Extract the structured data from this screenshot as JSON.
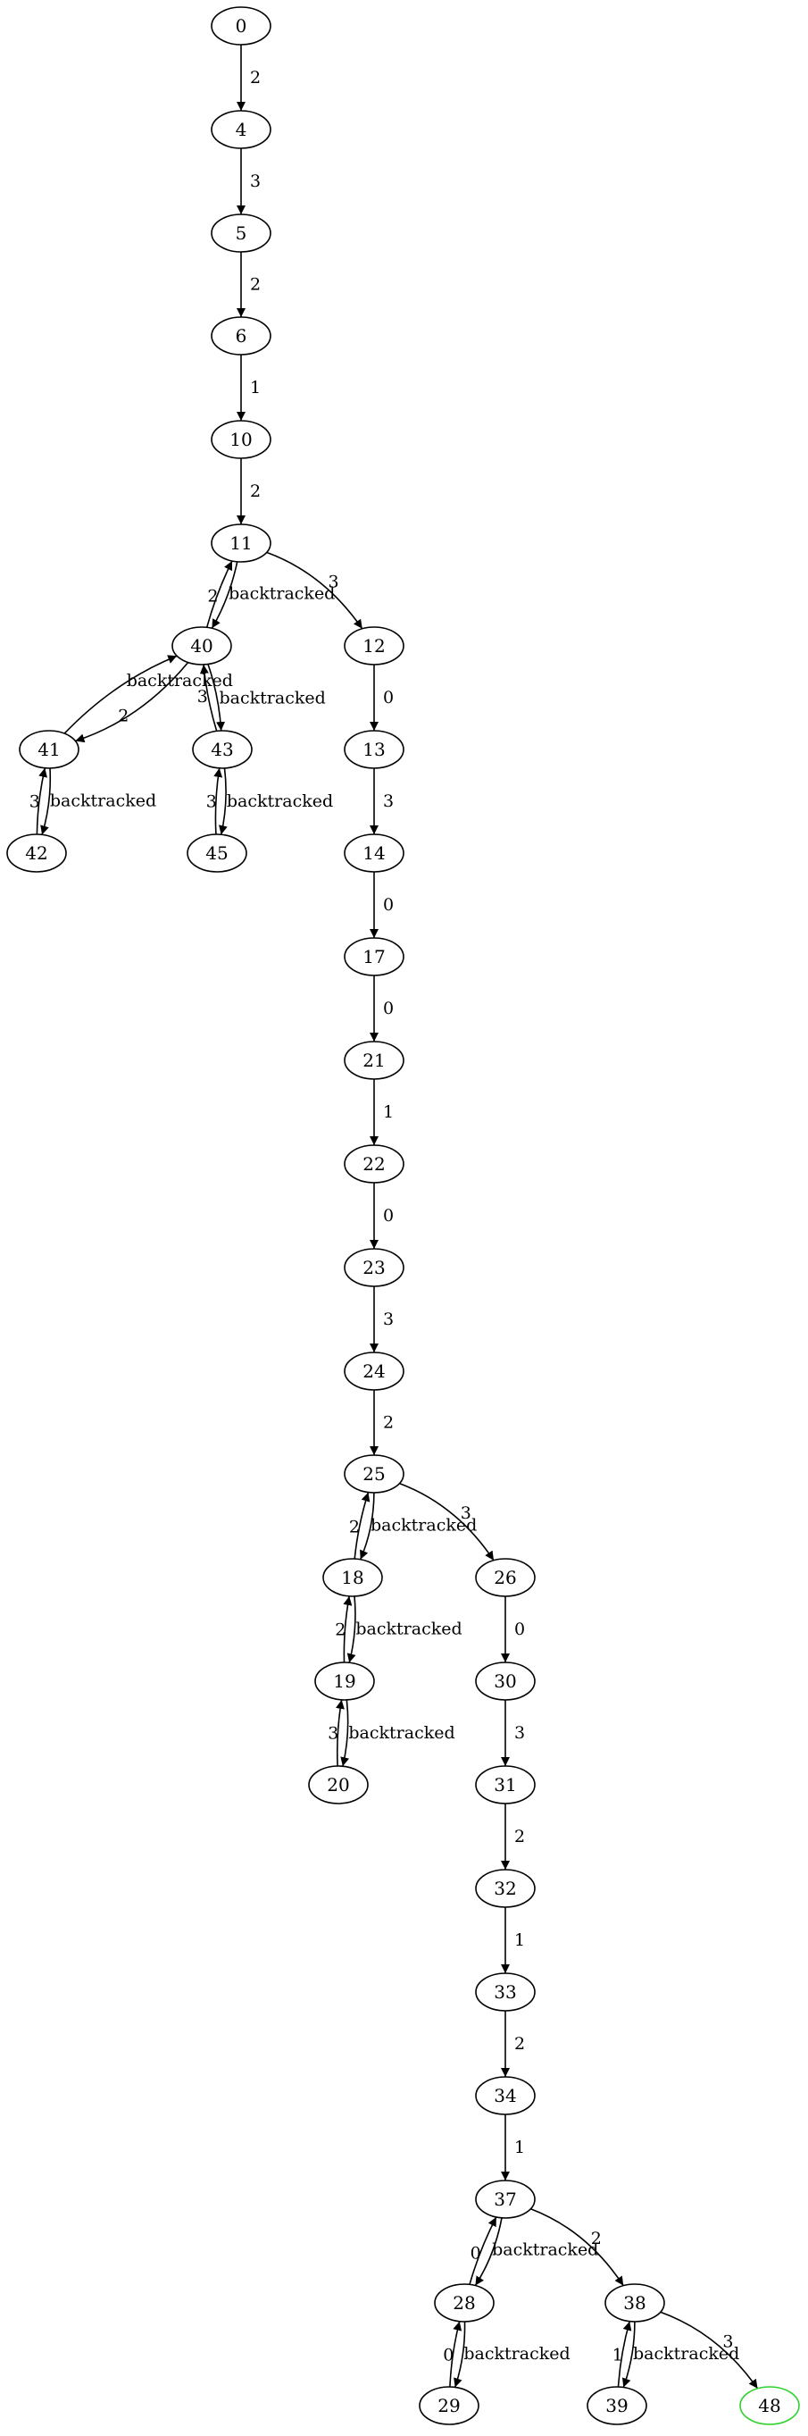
{
  "diagram": {
    "type": "directed-graph",
    "colors": {
      "node_stroke": "#000000",
      "goal_stroke": "#2ed12e",
      "edge": "#000000",
      "background": "#ffffff"
    },
    "nodes": [
      {
        "id": "0",
        "label": "0"
      },
      {
        "id": "4",
        "label": "4"
      },
      {
        "id": "5",
        "label": "5"
      },
      {
        "id": "6",
        "label": "6"
      },
      {
        "id": "10",
        "label": "10"
      },
      {
        "id": "11",
        "label": "11"
      },
      {
        "id": "40",
        "label": "40"
      },
      {
        "id": "12",
        "label": "12"
      },
      {
        "id": "41",
        "label": "41"
      },
      {
        "id": "43",
        "label": "43"
      },
      {
        "id": "13",
        "label": "13"
      },
      {
        "id": "42",
        "label": "42"
      },
      {
        "id": "45",
        "label": "45"
      },
      {
        "id": "14",
        "label": "14"
      },
      {
        "id": "17",
        "label": "17"
      },
      {
        "id": "21",
        "label": "21"
      },
      {
        "id": "22",
        "label": "22"
      },
      {
        "id": "23",
        "label": "23"
      },
      {
        "id": "24",
        "label": "24"
      },
      {
        "id": "25",
        "label": "25"
      },
      {
        "id": "18",
        "label": "18"
      },
      {
        "id": "26",
        "label": "26"
      },
      {
        "id": "19",
        "label": "19"
      },
      {
        "id": "30",
        "label": "30"
      },
      {
        "id": "20",
        "label": "20"
      },
      {
        "id": "31",
        "label": "31"
      },
      {
        "id": "32",
        "label": "32"
      },
      {
        "id": "33",
        "label": "33"
      },
      {
        "id": "34",
        "label": "34"
      },
      {
        "id": "37",
        "label": "37"
      },
      {
        "id": "28",
        "label": "28"
      },
      {
        "id": "38",
        "label": "38"
      },
      {
        "id": "29",
        "label": "29"
      },
      {
        "id": "39",
        "label": "39"
      },
      {
        "id": "48",
        "label": "48",
        "goal": true
      }
    ],
    "edges": [
      {
        "from": "0",
        "to": "4",
        "label": "2"
      },
      {
        "from": "4",
        "to": "5",
        "label": "3"
      },
      {
        "from": "5",
        "to": "6",
        "label": "2"
      },
      {
        "from": "6",
        "to": "10",
        "label": "1"
      },
      {
        "from": "10",
        "to": "11",
        "label": "2"
      },
      {
        "from": "11",
        "to": "40",
        "label": "2"
      },
      {
        "from": "40",
        "to": "11",
        "label": "backtracked"
      },
      {
        "from": "11",
        "to": "12",
        "label": "3"
      },
      {
        "from": "40",
        "to": "41",
        "label": "2"
      },
      {
        "from": "41",
        "to": "40",
        "label": "backtracked"
      },
      {
        "from": "40",
        "to": "43",
        "label": "3"
      },
      {
        "from": "43",
        "to": "40",
        "label": "backtracked"
      },
      {
        "from": "41",
        "to": "42",
        "label": "3"
      },
      {
        "from": "42",
        "to": "41",
        "label": "backtracked"
      },
      {
        "from": "43",
        "to": "45",
        "label": "3"
      },
      {
        "from": "45",
        "to": "43",
        "label": "backtracked"
      },
      {
        "from": "12",
        "to": "13",
        "label": "0"
      },
      {
        "from": "13",
        "to": "14",
        "label": "3"
      },
      {
        "from": "14",
        "to": "17",
        "label": "0"
      },
      {
        "from": "17",
        "to": "21",
        "label": "0"
      },
      {
        "from": "21",
        "to": "22",
        "label": "1"
      },
      {
        "from": "22",
        "to": "23",
        "label": "0"
      },
      {
        "from": "23",
        "to": "24",
        "label": "3"
      },
      {
        "from": "24",
        "to": "25",
        "label": "2"
      },
      {
        "from": "25",
        "to": "18",
        "label": "2"
      },
      {
        "from": "18",
        "to": "25",
        "label": "backtracked"
      },
      {
        "from": "25",
        "to": "26",
        "label": "3"
      },
      {
        "from": "18",
        "to": "19",
        "label": "2"
      },
      {
        "from": "19",
        "to": "18",
        "label": "backtracked"
      },
      {
        "from": "19",
        "to": "20",
        "label": "3"
      },
      {
        "from": "20",
        "to": "19",
        "label": "backtracked"
      },
      {
        "from": "26",
        "to": "30",
        "label": "0"
      },
      {
        "from": "30",
        "to": "31",
        "label": "3"
      },
      {
        "from": "31",
        "to": "32",
        "label": "2"
      },
      {
        "from": "32",
        "to": "33",
        "label": "1"
      },
      {
        "from": "33",
        "to": "34",
        "label": "2"
      },
      {
        "from": "34",
        "to": "37",
        "label": "1"
      },
      {
        "from": "37",
        "to": "28",
        "label": "0"
      },
      {
        "from": "28",
        "to": "37",
        "label": "backtracked"
      },
      {
        "from": "37",
        "to": "38",
        "label": "2"
      },
      {
        "from": "28",
        "to": "29",
        "label": "0"
      },
      {
        "from": "29",
        "to": "28",
        "label": "backtracked"
      },
      {
        "from": "38",
        "to": "39",
        "label": "1"
      },
      {
        "from": "39",
        "to": "38",
        "label": "backtracked"
      },
      {
        "from": "38",
        "to": "48",
        "label": "3"
      }
    ]
  }
}
